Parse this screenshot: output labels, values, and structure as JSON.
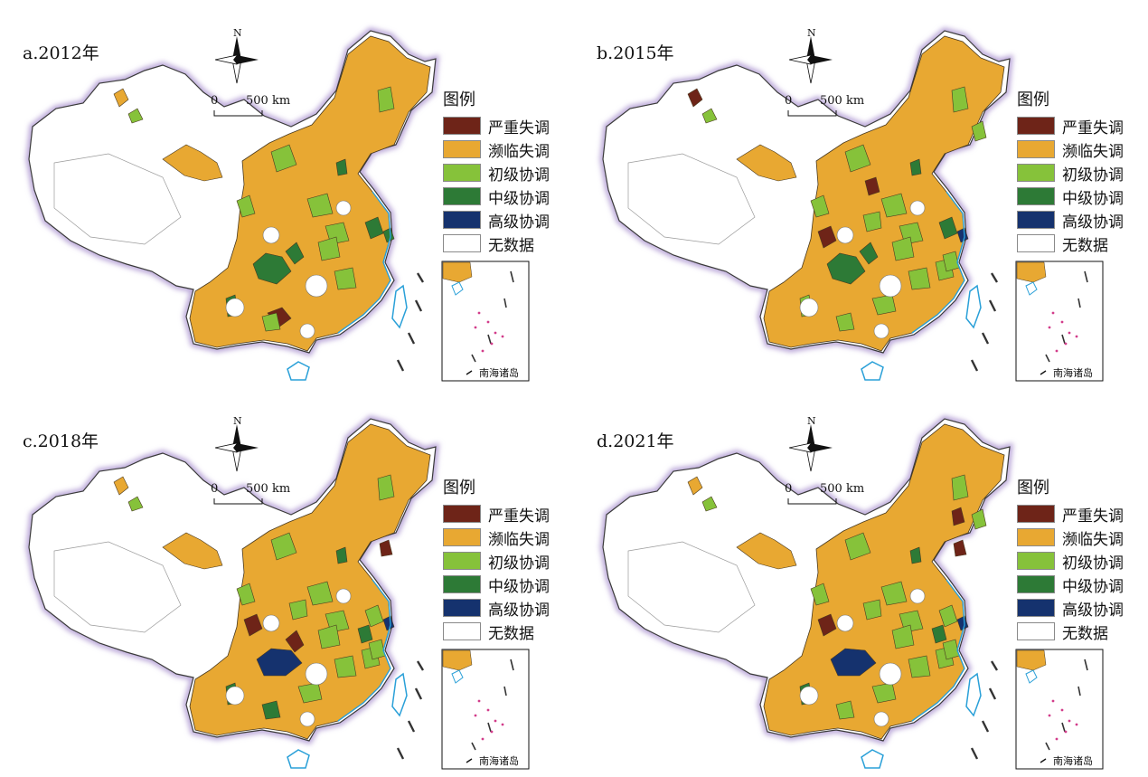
{
  "legend": {
    "title": "图例",
    "items": [
      {
        "label": "严重失调",
        "color": "#6e2418"
      },
      {
        "label": "濒临失调",
        "color": "#e8a832"
      },
      {
        "label": "初级协调",
        "color": "#86c23a"
      },
      {
        "label": "中级协调",
        "color": "#2d7a36"
      },
      {
        "label": "高级协调",
        "color": "#15326e"
      },
      {
        "label": "无数据",
        "color": "#ffffff"
      }
    ]
  },
  "scale_bar": {
    "zero": "0",
    "distance": "500 km"
  },
  "north_label": "N",
  "inset_label": "南海诸岛",
  "panels": [
    {
      "title": "a.2012年"
    },
    {
      "title": "b.2015年"
    },
    {
      "title": "c.2018年"
    },
    {
      "title": "d.2021年"
    }
  ]
}
